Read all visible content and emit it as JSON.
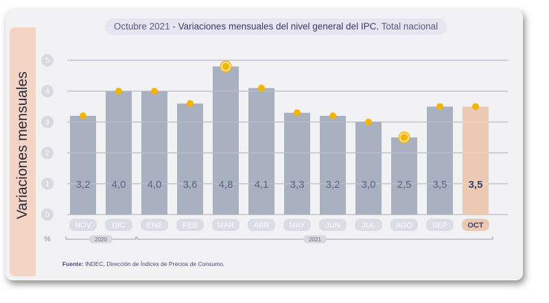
{
  "title": {
    "part1": "Octubre 2021 - ",
    "part2": "Variaciones mensuales del nivel general del IPC.",
    "part3": " Total nacional"
  },
  "source": {
    "label": "Fuente:",
    "text": " INDEC, Dirección de Índices de Precios de Consumo."
  },
  "colors": {
    "bar": "#a9b1c1",
    "bar_highlight": "#ecc9b3",
    "dot": "#f0b500",
    "value_text": "#5a6284",
    "month_pill": "#dadce6",
    "month_text": "#ffffff"
  },
  "chart_data": {
    "type": "bar",
    "ylabel": "Variaciones mensuales",
    "y_unit_label": "%",
    "ylim": [
      0,
      5
    ],
    "yticks": [
      0,
      1,
      2,
      3,
      4,
      5
    ],
    "grid": true,
    "categories": [
      "NOV",
      "DIC",
      "ENE",
      "FEB",
      "MAR",
      "ABR",
      "MAY",
      "JUN",
      "JUL",
      "AGO",
      "SEP",
      "OCT"
    ],
    "values": [
      3.2,
      4.0,
      4.0,
      3.6,
      4.8,
      4.1,
      3.3,
      3.2,
      3.0,
      2.5,
      3.5,
      3.5
    ],
    "value_labels": [
      "3,2",
      "4,0",
      "4,0",
      "3,6",
      "4,8",
      "4,1",
      "3,3",
      "3,2",
      "3,0",
      "2,5",
      "3,5",
      "3,5"
    ],
    "highlighted": [
      "OCT"
    ],
    "circled_points": [
      "MAR",
      "AGO"
    ],
    "year_groups": [
      {
        "label": "2020",
        "from": 0,
        "to": 1
      },
      {
        "label": "2021",
        "from": 2,
        "to": 11
      }
    ]
  }
}
